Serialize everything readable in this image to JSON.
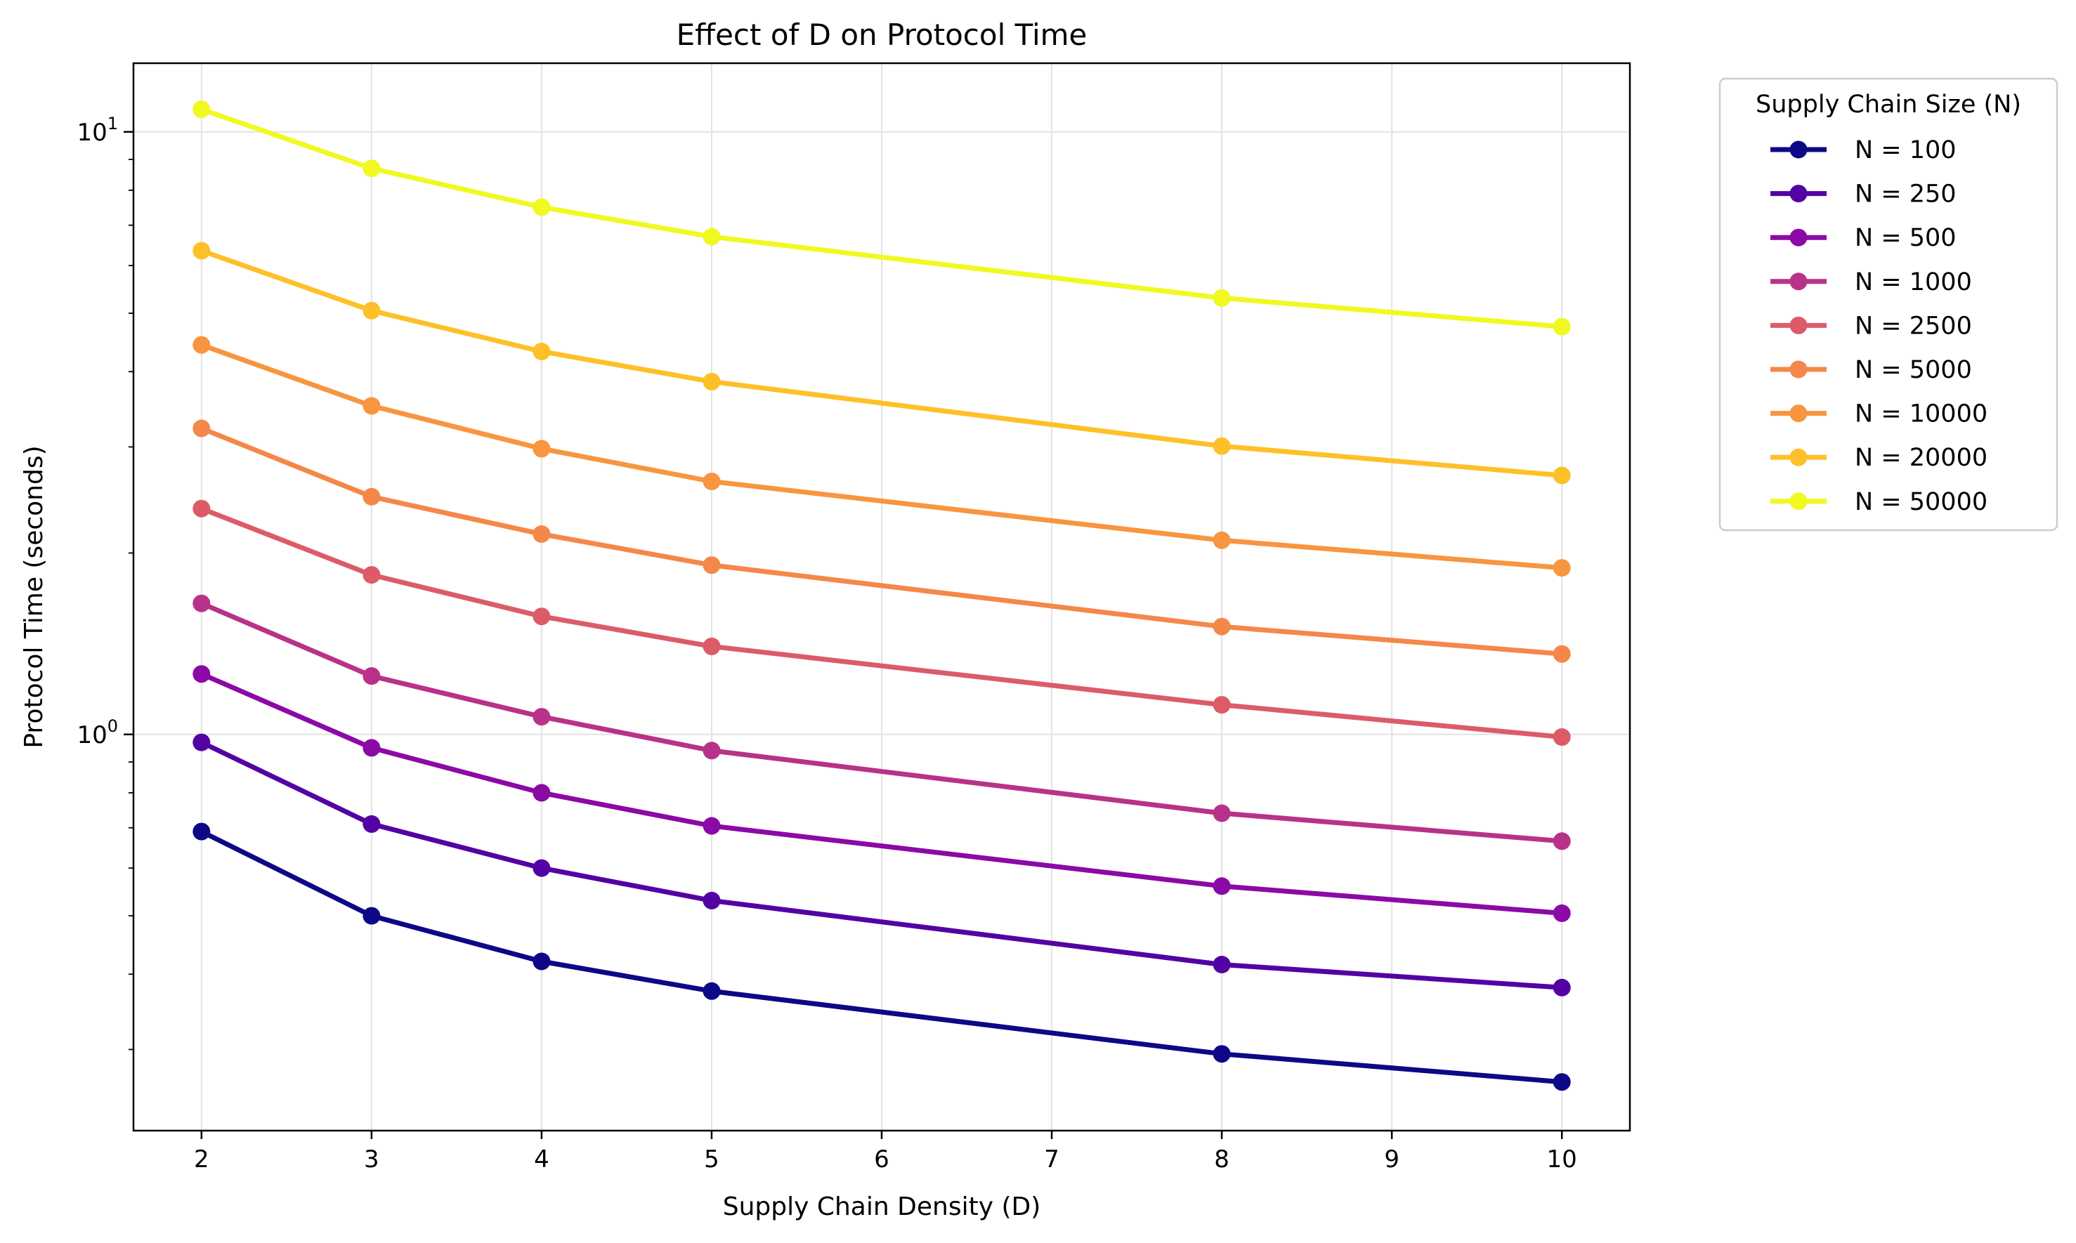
{
  "chart_data": {
    "type": "line",
    "title": "Effect of D on Protocol Time",
    "xlabel": "Supply Chain Density (D)",
    "ylabel": "Protocol Time (seconds)",
    "yscale": "log",
    "xlim": [
      1.6,
      10.4
    ],
    "ylim": [
      0.22,
      13.0
    ],
    "xticks": [
      2,
      3,
      4,
      5,
      6,
      7,
      8,
      9,
      10
    ],
    "yticks": [
      {
        "value": 1,
        "base": "10",
        "exp": "0"
      },
      {
        "value": 10,
        "base": "10",
        "exp": "1"
      }
    ],
    "grid": true,
    "legend": {
      "title": "Supply Chain Size (N)",
      "placement": "outside-top-right"
    },
    "x": [
      2,
      3,
      4,
      5,
      8,
      10
    ],
    "series": [
      {
        "name": "N = 100",
        "color": "#0d0887",
        "values": [
          0.69,
          0.5,
          0.42,
          0.375,
          0.295,
          0.265
        ]
      },
      {
        "name": "N = 250",
        "color": "#5302a3",
        "values": [
          0.97,
          0.71,
          0.6,
          0.53,
          0.415,
          0.38
        ]
      },
      {
        "name": "N = 500",
        "color": "#8b0aa5",
        "values": [
          1.26,
          0.95,
          0.8,
          0.705,
          0.56,
          0.505
        ]
      },
      {
        "name": "N = 1000",
        "color": "#b83289",
        "values": [
          1.65,
          1.25,
          1.07,
          0.94,
          0.74,
          0.665
        ]
      },
      {
        "name": "N = 2500",
        "color": "#db5c68",
        "values": [
          2.37,
          1.84,
          1.57,
          1.4,
          1.12,
          0.99
        ]
      },
      {
        "name": "N = 5000",
        "color": "#f48849",
        "values": [
          3.22,
          2.48,
          2.15,
          1.91,
          1.51,
          1.36
        ]
      },
      {
        "name": "N = 10000",
        "color": "#f89540",
        "values": [
          4.43,
          3.51,
          2.98,
          2.63,
          2.1,
          1.89
        ]
      },
      {
        "name": "N = 20000",
        "color": "#fec029",
        "values": [
          6.35,
          5.05,
          4.32,
          3.85,
          3.01,
          2.69
        ]
      },
      {
        "name": "N = 50000",
        "color": "#f0f921",
        "values": [
          10.9,
          8.7,
          7.5,
          6.7,
          5.3,
          4.75
        ]
      }
    ]
  }
}
